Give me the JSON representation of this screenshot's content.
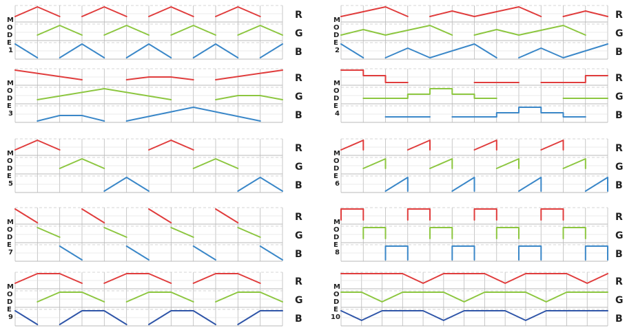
{
  "channel_labels": [
    "R",
    "G",
    "B"
  ],
  "colors": {
    "R": "#e03c3c",
    "G": "#8cc63f",
    "B": "#3a87c8",
    "B_dark": "#2f55a8",
    "grid": "#b9b9b9",
    "grid_dash": "#c8c8c8",
    "text": "#222222"
  },
  "modes": [
    {
      "id": 1,
      "mode_letters": [
        "M",
        "O",
        "D",
        "E"
      ],
      "number": "1",
      "R": [
        [
          0,
          0.3
        ],
        [
          1,
          1
        ],
        [
          2,
          0.3
        ],
        null,
        [
          3,
          0.3
        ],
        [
          4,
          1
        ],
        [
          5,
          0.3
        ],
        null,
        [
          6,
          0.3
        ],
        [
          7,
          1
        ],
        [
          8,
          0.3
        ],
        null,
        [
          9,
          0.3
        ],
        [
          10,
          1
        ],
        [
          11,
          0.3
        ]
      ],
      "G": [
        [
          1,
          0.3
        ],
        [
          2,
          1
        ],
        [
          3,
          0.3
        ],
        null,
        [
          4,
          0.3
        ],
        [
          5,
          1
        ],
        [
          6,
          0.3
        ],
        null,
        [
          7,
          0.3
        ],
        [
          8,
          1
        ],
        [
          9,
          0.3
        ],
        null,
        [
          10,
          0.3
        ],
        [
          11,
          1
        ],
        [
          12,
          0.3
        ]
      ],
      "B": [
        [
          0,
          1
        ],
        [
          1,
          0
        ],
        null,
        [
          2,
          0
        ],
        [
          3,
          1
        ],
        [
          4,
          0
        ],
        null,
        [
          5,
          0
        ],
        [
          6,
          1
        ],
        [
          7,
          0
        ],
        null,
        [
          8,
          0
        ],
        [
          9,
          1
        ],
        [
          10,
          0
        ],
        null,
        [
          11,
          0
        ],
        [
          12,
          1
        ]
      ]
    },
    {
      "id": 2,
      "mode_letters": [
        "M",
        "O",
        "D",
        "E"
      ],
      "number": "2",
      "R": [
        [
          0,
          0.3
        ],
        [
          2,
          1
        ],
        [
          3,
          0.3
        ],
        null,
        [
          4,
          0.3
        ],
        [
          5,
          0.7
        ],
        [
          6,
          0.3
        ],
        [
          8,
          1
        ],
        [
          9,
          0.3
        ],
        null,
        [
          10,
          0.3
        ],
        [
          11,
          0.7
        ],
        [
          12,
          0.3
        ]
      ],
      "G": [
        [
          0,
          0.3
        ],
        [
          1,
          0.7
        ],
        [
          2,
          0.3
        ],
        [
          4,
          1
        ],
        [
          5,
          0.3
        ],
        null,
        [
          6,
          0.3
        ],
        [
          7,
          0.7
        ],
        [
          8,
          0.3
        ],
        [
          10,
          1
        ],
        [
          11,
          0.3
        ]
      ],
      "B": [
        [
          0,
          1
        ],
        [
          1,
          0
        ],
        null,
        [
          2,
          0
        ],
        [
          3,
          0.7
        ],
        [
          4,
          0
        ],
        [
          6,
          1
        ],
        [
          7,
          0
        ],
        null,
        [
          8,
          0
        ],
        [
          9,
          0.7
        ],
        [
          10,
          0
        ],
        [
          12,
          1
        ]
      ]
    },
    {
      "id": 3,
      "mode_letters": [
        "M",
        "O",
        "D",
        "E"
      ],
      "number": "3",
      "R": [
        [
          0,
          1
        ],
        [
          3,
          0.3
        ],
        null,
        [
          5,
          0.3
        ],
        [
          6,
          0.5
        ],
        [
          7,
          0.5
        ],
        [
          8,
          0.3
        ],
        null,
        [
          9,
          0.3
        ],
        [
          12,
          1
        ]
      ],
      "G": [
        [
          1,
          0.2
        ],
        [
          4,
          1
        ],
        [
          7,
          0.2
        ],
        null,
        [
          9,
          0.2
        ],
        [
          10,
          0.5
        ],
        [
          11,
          0.5
        ],
        [
          12,
          0.2
        ]
      ],
      "B": [
        [
          1,
          0
        ],
        [
          2,
          0.4
        ],
        [
          3,
          0.4
        ],
        [
          4,
          0
        ],
        null,
        [
          5,
          0
        ],
        [
          8,
          1
        ],
        [
          11,
          0
        ]
      ]
    },
    {
      "id": 4,
      "mode_letters": [
        "M",
        "O",
        "D",
        "E"
      ],
      "number": "4",
      "R": [
        [
          0,
          1
        ],
        [
          1,
          1
        ],
        [
          1,
          0.6
        ],
        [
          2,
          0.6
        ],
        [
          2,
          0.1
        ],
        [
          3,
          0.1
        ],
        null,
        [
          6,
          0.1
        ],
        [
          8,
          0.1
        ],
        null,
        [
          9,
          0.1
        ],
        [
          11,
          0.1
        ],
        [
          11,
          0.6
        ],
        [
          12,
          0.6
        ]
      ],
      "G": [
        [
          1,
          0.3
        ],
        [
          3,
          0.3
        ],
        [
          3,
          0.6
        ],
        [
          4,
          0.6
        ],
        [
          4,
          1
        ],
        [
          5,
          1
        ],
        [
          5,
          0.6
        ],
        [
          6,
          0.6
        ],
        [
          6,
          0.3
        ],
        [
          7,
          0.3
        ],
        null,
        [
          10,
          0.3
        ],
        [
          12,
          0.3
        ]
      ],
      "B": [
        [
          2,
          0.3
        ],
        [
          4,
          0.3
        ],
        null,
        [
          5,
          0.3
        ],
        [
          7,
          0.3
        ],
        [
          7,
          0.6
        ],
        [
          8,
          0.6
        ],
        [
          8,
          1
        ],
        [
          9,
          1
        ],
        [
          9,
          0.6
        ],
        [
          10,
          0.6
        ],
        [
          10,
          0.3
        ],
        [
          11,
          0.3
        ]
      ]
    },
    {
      "id": 5,
      "mode_letters": [
        "M",
        "O",
        "D",
        "E"
      ],
      "number": "5",
      "R": [
        [
          0,
          0.3
        ],
        [
          1,
          1
        ],
        [
          2,
          0.3
        ],
        null,
        [
          6,
          0.3
        ],
        [
          7,
          1
        ],
        [
          8,
          0.3
        ]
      ],
      "G": [
        [
          2,
          0.3
        ],
        [
          3,
          1
        ],
        [
          4,
          0.3
        ],
        null,
        [
          8,
          0.3
        ],
        [
          9,
          1
        ],
        [
          10,
          0.3
        ]
      ],
      "B": [
        [
          4,
          0
        ],
        [
          5,
          1
        ],
        [
          6,
          0
        ],
        null,
        [
          10,
          0
        ],
        [
          11,
          1
        ],
        [
          12,
          0
        ]
      ]
    },
    {
      "id": 6,
      "mode_letters": [
        "M",
        "O",
        "D",
        "E"
      ],
      "number": "6",
      "R": [
        [
          0,
          0.3
        ],
        [
          1,
          1
        ],
        [
          1,
          0.3
        ],
        null,
        [
          3,
          0.3
        ],
        [
          4,
          1
        ],
        [
          4,
          0.3
        ],
        null,
        [
          6,
          0.3
        ],
        [
          7,
          1
        ],
        [
          7,
          0.3
        ],
        null,
        [
          9,
          0.3
        ],
        [
          10,
          1
        ],
        [
          10,
          0.3
        ]
      ],
      "G": [
        [
          1,
          0.3
        ],
        [
          2,
          1
        ],
        [
          2,
          0.3
        ],
        null,
        [
          4,
          0.3
        ],
        [
          5,
          1
        ],
        [
          5,
          0.3
        ],
        null,
        [
          7,
          0.3
        ],
        [
          8,
          1
        ],
        [
          8,
          0.3
        ],
        null,
        [
          10,
          0.3
        ],
        [
          11,
          1
        ],
        [
          11,
          0.3
        ]
      ],
      "B": [
        [
          2,
          0
        ],
        [
          3,
          1
        ],
        [
          3,
          0
        ],
        null,
        [
          5,
          0
        ],
        [
          6,
          1
        ],
        [
          6,
          0
        ],
        null,
        [
          8,
          0
        ],
        [
          9,
          1
        ],
        [
          9,
          0
        ],
        null,
        [
          11,
          0
        ],
        [
          12,
          1
        ],
        [
          12,
          0
        ]
      ]
    },
    {
      "id": 7,
      "mode_letters": [
        "M",
        "O",
        "D",
        "E"
      ],
      "number": "7",
      "R": [
        [
          0,
          1
        ],
        [
          1,
          0
        ],
        null,
        [
          3,
          1
        ],
        [
          4,
          0
        ],
        null,
        [
          6,
          1
        ],
        [
          7,
          0
        ],
        null,
        [
          9,
          1
        ],
        [
          10,
          0
        ]
      ],
      "G": [
        [
          1,
          1
        ],
        [
          2,
          0.3
        ],
        null,
        [
          4,
          1
        ],
        [
          5,
          0.3
        ],
        null,
        [
          7,
          1
        ],
        [
          8,
          0.3
        ],
        null,
        [
          10,
          1
        ],
        [
          11,
          0.3
        ]
      ],
      "B": [
        [
          2,
          1
        ],
        [
          3,
          0
        ],
        null,
        [
          5,
          1
        ],
        [
          6,
          0
        ],
        null,
        [
          8,
          1
        ],
        [
          9,
          0
        ],
        null,
        [
          11,
          1
        ],
        [
          12,
          0
        ]
      ]
    },
    {
      "id": 8,
      "mode_letters": [
        "M",
        "O",
        "D",
        "E"
      ],
      "number": "8",
      "R": [
        [
          0,
          0.2
        ],
        [
          0,
          1
        ],
        [
          1,
          1
        ],
        [
          1,
          0.2
        ],
        null,
        [
          3,
          0.2
        ],
        [
          3,
          1
        ],
        [
          4,
          1
        ],
        [
          4,
          0.2
        ],
        null,
        [
          6,
          0.2
        ],
        [
          6,
          1
        ],
        [
          7,
          1
        ],
        [
          7,
          0.2
        ],
        null,
        [
          9,
          0.2
        ],
        [
          9,
          1
        ],
        [
          10,
          1
        ],
        [
          10,
          0.2
        ]
      ],
      "G": [
        [
          1,
          0.2
        ],
        [
          1,
          1
        ],
        [
          2,
          1
        ],
        [
          2,
          0.2
        ],
        null,
        [
          4,
          0.2
        ],
        [
          4,
          1
        ],
        [
          5,
          1
        ],
        [
          5,
          0.2
        ],
        null,
        [
          7,
          0.2
        ],
        [
          7,
          1
        ],
        [
          8,
          1
        ],
        [
          8,
          0.2
        ],
        null,
        [
          10,
          0.2
        ],
        [
          10,
          1
        ],
        [
          11,
          1
        ],
        [
          11,
          0.2
        ]
      ],
      "B": [
        [
          2,
          0
        ],
        [
          2,
          1
        ],
        [
          3,
          1
        ],
        [
          3,
          0
        ],
        null,
        [
          5,
          0
        ],
        [
          5,
          1
        ],
        [
          6,
          1
        ],
        [
          6,
          0
        ],
        null,
        [
          8,
          0
        ],
        [
          8,
          1
        ],
        [
          9,
          1
        ],
        [
          9,
          0
        ],
        null,
        [
          11,
          0
        ],
        [
          11,
          1
        ],
        [
          12,
          1
        ],
        [
          12,
          0
        ]
      ]
    },
    {
      "id": 9,
      "mode_letters": [
        "M",
        "O",
        "D",
        "E"
      ],
      "number": "9",
      "R": [
        [
          0,
          0.3
        ],
        [
          1,
          1
        ],
        [
          2,
          1
        ],
        [
          3,
          0.3
        ],
        null,
        [
          4,
          0.3
        ],
        [
          5,
          1
        ],
        [
          6,
          1
        ],
        [
          7,
          0.3
        ],
        null,
        [
          8,
          0.3
        ],
        [
          9,
          1
        ],
        [
          10,
          1
        ],
        [
          11,
          0.3
        ]
      ],
      "G": [
        [
          1,
          0.3
        ],
        [
          2,
          1
        ],
        [
          3,
          1
        ],
        [
          4,
          0.3
        ],
        null,
        [
          5,
          0.3
        ],
        [
          6,
          1
        ],
        [
          7,
          1
        ],
        [
          8,
          0.3
        ],
        null,
        [
          9,
          0.3
        ],
        [
          10,
          1
        ],
        [
          11,
          1
        ],
        [
          12,
          0.3
        ]
      ],
      "B": [
        [
          0,
          1
        ],
        [
          1,
          0
        ],
        null,
        [
          2,
          0
        ],
        [
          3,
          1
        ],
        [
          4,
          1
        ],
        [
          5,
          0
        ],
        null,
        [
          6,
          0
        ],
        [
          7,
          1
        ],
        [
          8,
          1
        ],
        [
          9,
          0
        ],
        null,
        [
          10,
          0
        ],
        [
          11,
          1
        ],
        [
          12,
          1
        ]
      ]
    },
    {
      "id": 10,
      "mode_letters": [
        "M",
        "O",
        "D",
        "E"
      ],
      "number": "10",
      "R": [
        [
          0,
          1
        ],
        [
          3,
          1
        ],
        [
          4,
          0.3
        ],
        [
          5,
          1
        ],
        [
          7,
          1
        ],
        [
          8,
          0.3
        ],
        [
          9,
          1
        ],
        [
          11,
          1
        ],
        [
          12,
          0.3
        ],
        [
          13,
          1
        ]
      ],
      "G": [
        [
          0,
          1
        ],
        [
          1,
          1
        ],
        [
          2,
          0.3
        ],
        [
          3,
          1
        ],
        [
          5,
          1
        ],
        [
          6,
          0.3
        ],
        [
          7,
          1
        ],
        [
          9,
          1
        ],
        [
          10,
          0.3
        ],
        [
          11,
          1
        ],
        [
          13,
          1
        ]
      ],
      "B": [
        [
          0,
          1
        ],
        [
          1,
          0.3
        ],
        [
          2,
          1
        ],
        [
          4,
          1
        ],
        [
          5,
          0.3
        ],
        [
          6,
          1
        ],
        [
          8,
          1
        ],
        [
          9,
          0.3
        ],
        [
          10,
          1
        ],
        [
          12,
          1
        ],
        [
          13,
          1
        ]
      ]
    }
  ]
}
